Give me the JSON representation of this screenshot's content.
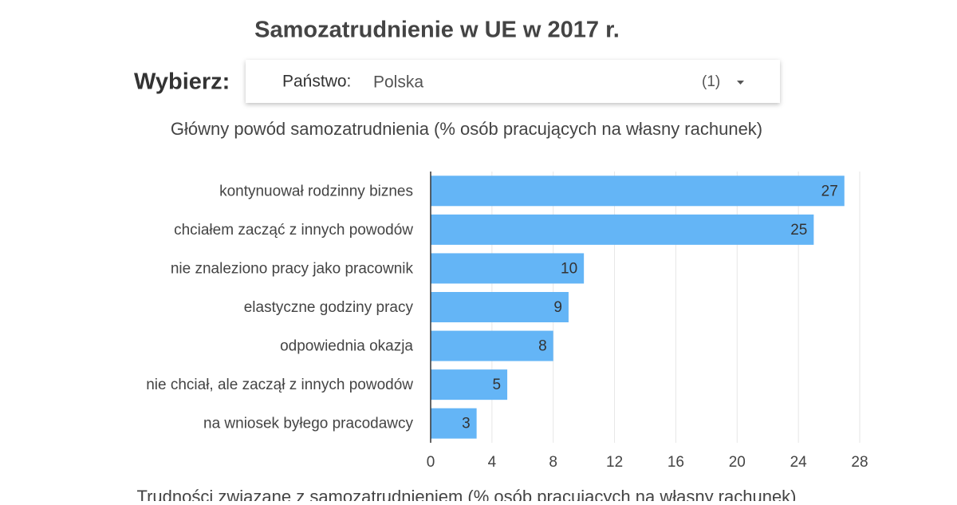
{
  "page_title": "Samozatrudnienie w UE w 2017 r.",
  "selector": {
    "label": "Wybierz:",
    "field": "Państwo:",
    "value": "Polska",
    "count": "(1)"
  },
  "chart_data": {
    "type": "bar",
    "orientation": "horizontal",
    "title": "Główny powód samozatrudnienia (% osób pracujących na własny rachunek)",
    "categories": [
      "kontynuował rodzinny biznes",
      "chciałem zacząć z innych powodów",
      "nie znaleziono pracy jako pracownik",
      "elastyczne godziny pracy",
      "odpowiednia okazja",
      "nie chciał, ale zaczął z innych powodów",
      "na wniosek byłego pracodawcy"
    ],
    "values": [
      27,
      25,
      10,
      9,
      8,
      5,
      3
    ],
    "color": "#64b5f6",
    "xlim": [
      0,
      28
    ],
    "xticks": [
      0,
      4,
      8,
      12,
      16,
      20,
      24,
      28
    ],
    "grid": true
  },
  "next_section_title": "Trudności związane z samozatrudnieniem (% osób pracujących na własny rachunek)"
}
